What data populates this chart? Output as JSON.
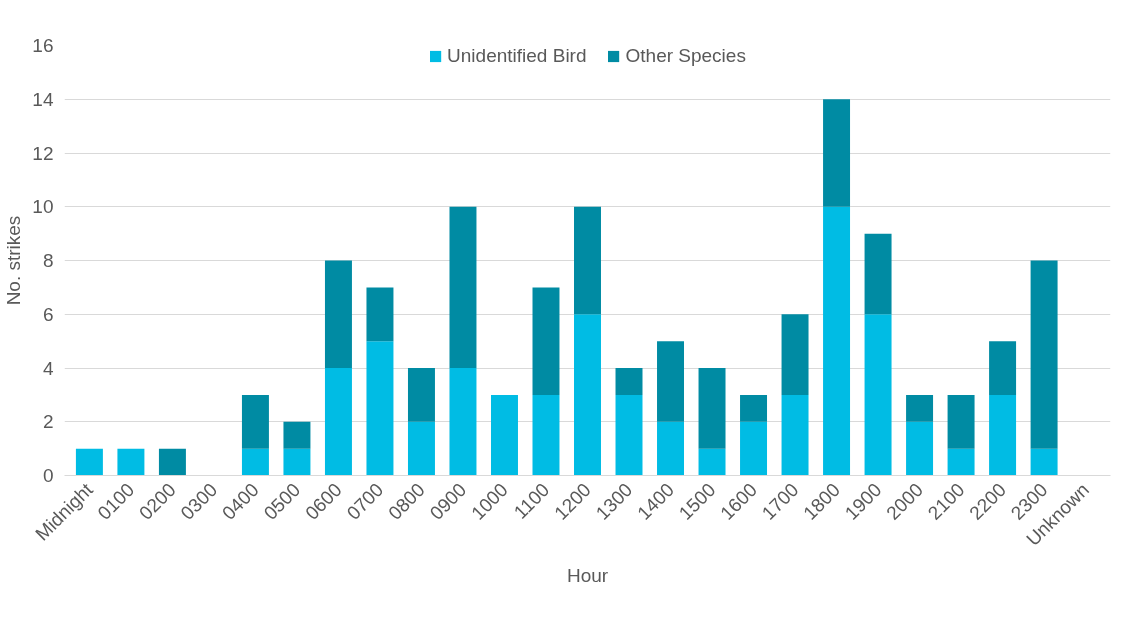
{
  "chart_data": {
    "type": "bar",
    "stacked": true,
    "xlabel": "Hour",
    "ylabel": "No. strikes",
    "categories": [
      "Midnight",
      "0100",
      "0200",
      "0300",
      "0400",
      "0500",
      "0600",
      "0700",
      "0800",
      "0900",
      "1000",
      "1100",
      "1200",
      "1300",
      "1400",
      "1500",
      "1600",
      "1700",
      "1800",
      "1900",
      "2000",
      "2100",
      "2200",
      "2300",
      "Unknown"
    ],
    "series": [
      {
        "name": "Unidentified Bird",
        "color": "#00bce4",
        "values": [
          1,
          1,
          0,
          0,
          1,
          1,
          4,
          5,
          2,
          4,
          3,
          3,
          6,
          3,
          2,
          1,
          2,
          3,
          10,
          6,
          2,
          1,
          3,
          1,
          0
        ]
      },
      {
        "name": "Other Species",
        "color": "#008ba3",
        "values": [
          0,
          0,
          1,
          0,
          2,
          1,
          4,
          2,
          2,
          6,
          0,
          4,
          4,
          1,
          3,
          3,
          1,
          3,
          4,
          3,
          1,
          2,
          2,
          7,
          0
        ]
      }
    ],
    "ylim": [
      0,
      16
    ],
    "yticks": [
      0,
      2,
      4,
      6,
      8,
      10,
      12,
      14,
      16
    ],
    "grid": "y",
    "legend": "top"
  }
}
